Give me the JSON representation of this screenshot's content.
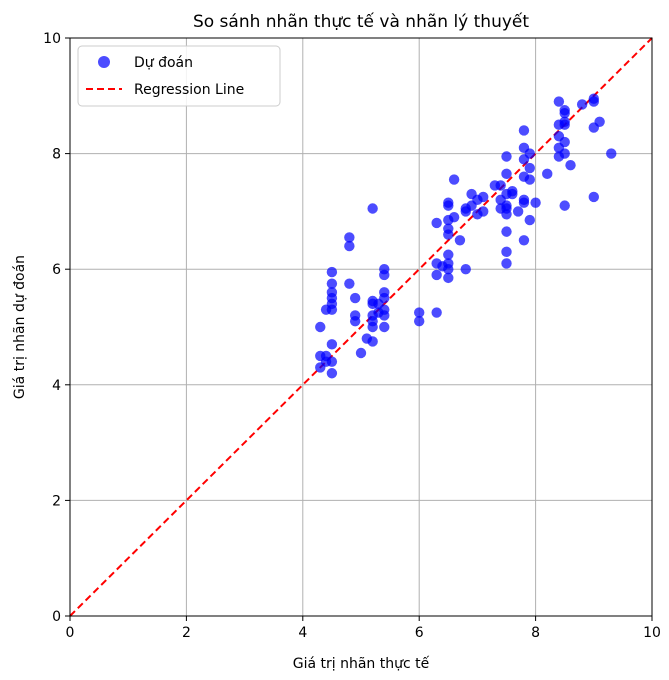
{
  "chart_data": {
    "type": "scatter",
    "title": "So sánh nhãn thực tế và nhãn lý thuyết",
    "xlabel": "Giá trị nhãn thực tế",
    "ylabel": "Giá trị nhãn dự đoán",
    "xlim": [
      0,
      10
    ],
    "ylim": [
      0,
      10
    ],
    "xticks": [
      "0",
      "2",
      "4",
      "6",
      "8",
      "10"
    ],
    "yticks": [
      "0",
      "2",
      "4",
      "6",
      "8",
      "10"
    ],
    "grid": true,
    "legend_position": "top-left",
    "series": [
      {
        "name": "Dự đoán",
        "kind": "scatter",
        "color": "#0000ff",
        "points": [
          [
            4.3,
            4.3
          ],
          [
            4.3,
            4.5
          ],
          [
            4.3,
            5.0
          ],
          [
            4.4,
            4.4
          ],
          [
            4.4,
            4.5
          ],
          [
            4.4,
            5.3
          ],
          [
            4.5,
            4.2
          ],
          [
            4.5,
            4.4
          ],
          [
            4.5,
            4.7
          ],
          [
            4.5,
            5.3
          ],
          [
            4.5,
            5.4
          ],
          [
            4.5,
            5.5
          ],
          [
            4.5,
            5.6
          ],
          [
            4.5,
            5.75
          ],
          [
            4.5,
            5.95
          ],
          [
            4.8,
            5.75
          ],
          [
            4.8,
            6.4
          ],
          [
            4.8,
            6.55
          ],
          [
            4.9,
            5.1
          ],
          [
            4.9,
            5.2
          ],
          [
            4.9,
            5.5
          ],
          [
            5.0,
            4.55
          ],
          [
            5.1,
            4.8
          ],
          [
            5.2,
            4.75
          ],
          [
            5.2,
            5.0
          ],
          [
            5.2,
            5.1
          ],
          [
            5.2,
            5.2
          ],
          [
            5.2,
            5.4
          ],
          [
            5.2,
            5.45
          ],
          [
            5.2,
            7.05
          ],
          [
            5.3,
            5.25
          ],
          [
            5.3,
            5.4
          ],
          [
            5.4,
            5.0
          ],
          [
            5.4,
            5.2
          ],
          [
            5.4,
            5.3
          ],
          [
            5.4,
            5.5
          ],
          [
            5.4,
            5.6
          ],
          [
            5.4,
            5.9
          ],
          [
            5.4,
            6.0
          ],
          [
            6.0,
            5.1
          ],
          [
            6.0,
            5.25
          ],
          [
            6.3,
            5.25
          ],
          [
            6.3,
            5.9
          ],
          [
            6.3,
            6.1
          ],
          [
            6.3,
            6.8
          ],
          [
            6.4,
            6.05
          ],
          [
            6.5,
            5.85
          ],
          [
            6.5,
            6.0
          ],
          [
            6.5,
            6.1
          ],
          [
            6.5,
            6.25
          ],
          [
            6.5,
            6.6
          ],
          [
            6.5,
            6.7
          ],
          [
            6.5,
            6.85
          ],
          [
            6.5,
            7.1
          ],
          [
            6.5,
            7.15
          ],
          [
            6.6,
            6.9
          ],
          [
            6.6,
            7.55
          ],
          [
            6.7,
            6.5
          ],
          [
            6.8,
            6.0
          ],
          [
            6.8,
            7.0
          ],
          [
            6.8,
            7.05
          ],
          [
            6.9,
            7.1
          ],
          [
            6.9,
            7.3
          ],
          [
            7.0,
            6.95
          ],
          [
            7.0,
            7.2
          ],
          [
            7.1,
            7.0
          ],
          [
            7.1,
            7.25
          ],
          [
            7.3,
            7.45
          ],
          [
            7.4,
            7.05
          ],
          [
            7.4,
            7.2
          ],
          [
            7.4,
            7.45
          ],
          [
            7.5,
            6.1
          ],
          [
            7.5,
            6.3
          ],
          [
            7.5,
            6.65
          ],
          [
            7.5,
            6.95
          ],
          [
            7.5,
            7.05
          ],
          [
            7.5,
            7.1
          ],
          [
            7.5,
            7.3
          ],
          [
            7.5,
            7.65
          ],
          [
            7.5,
            7.95
          ],
          [
            7.6,
            7.3
          ],
          [
            7.6,
            7.35
          ],
          [
            7.7,
            7.0
          ],
          [
            7.8,
            6.5
          ],
          [
            7.8,
            7.15
          ],
          [
            7.8,
            7.2
          ],
          [
            7.8,
            7.6
          ],
          [
            7.8,
            7.9
          ],
          [
            7.8,
            8.1
          ],
          [
            7.8,
            8.4
          ],
          [
            7.9,
            6.85
          ],
          [
            7.9,
            7.55
          ],
          [
            7.9,
            7.75
          ],
          [
            7.9,
            8.0
          ],
          [
            8.0,
            7.15
          ],
          [
            8.2,
            7.65
          ],
          [
            8.4,
            7.95
          ],
          [
            8.4,
            8.1
          ],
          [
            8.4,
            8.3
          ],
          [
            8.4,
            8.5
          ],
          [
            8.4,
            8.9
          ],
          [
            8.5,
            7.1
          ],
          [
            8.5,
            8.0
          ],
          [
            8.5,
            8.2
          ],
          [
            8.5,
            8.5
          ],
          [
            8.5,
            8.55
          ],
          [
            8.5,
            8.7
          ],
          [
            8.5,
            8.75
          ],
          [
            8.6,
            7.8
          ],
          [
            8.8,
            8.85
          ],
          [
            9.0,
            7.25
          ],
          [
            9.0,
            8.45
          ],
          [
            9.0,
            8.9
          ],
          [
            9.0,
            8.95
          ],
          [
            9.1,
            8.55
          ],
          [
            9.3,
            8.0
          ]
        ]
      },
      {
        "name": "Regression Line",
        "kind": "line",
        "color": "#ff0000",
        "x": [
          0,
          10
        ],
        "y": [
          0,
          10
        ]
      }
    ]
  }
}
